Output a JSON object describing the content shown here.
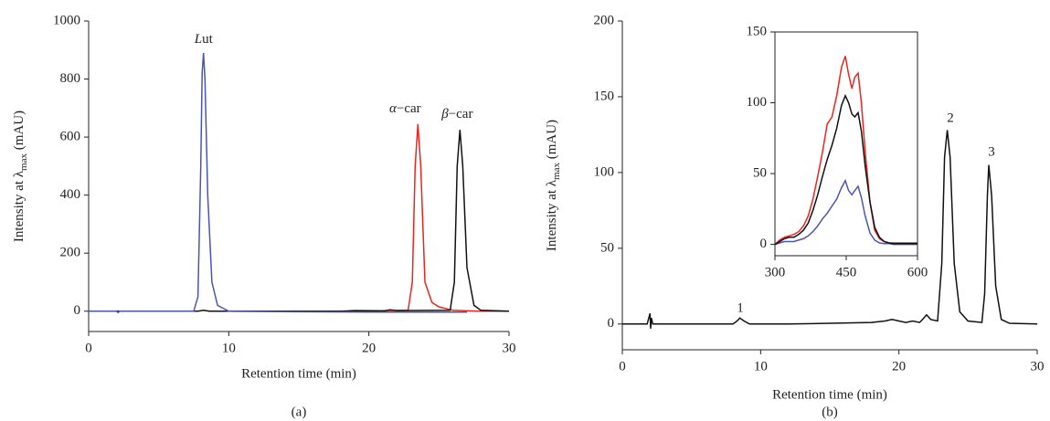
{
  "chart_data": [
    {
      "type": "line",
      "caption": "(a)",
      "xlabel": "Retention time (min)",
      "ylabel": [
        "Intensity at λ",
        "max",
        " (mAU)"
      ],
      "xlim": [
        0,
        30
      ],
      "ylim": [
        -70,
        1000
      ],
      "xticks": [
        0,
        10,
        20,
        30
      ],
      "yticks": [
        0,
        200,
        400,
        600,
        800,
        1000
      ],
      "series": [
        {
          "name": "α−car",
          "color": "#e8251f",
          "x": [
            18,
            19,
            21,
            22.8,
            23.1,
            23.3,
            23.5,
            23.7,
            24,
            24.5,
            25,
            26,
            28,
            30
          ],
          "values": [
            0,
            3,
            2,
            3,
            100,
            500,
            645,
            500,
            100,
            30,
            15,
            3,
            0,
            0
          ]
        },
        {
          "name": "β−car",
          "color": "#111111",
          "x": [
            0,
            7.8,
            8.2,
            8.6,
            15,
            21,
            21.5,
            22,
            25.8,
            26.1,
            26.3,
            26.5,
            26.7,
            27,
            27.5,
            28,
            30
          ],
          "values": [
            0,
            0,
            3,
            0,
            0,
            0,
            5,
            2,
            3,
            100,
            500,
            625,
            500,
            150,
            20,
            3,
            0
          ]
        },
        {
          "name": "Lut",
          "color": "#4a55b0",
          "x": [
            0,
            2,
            2.1,
            2.2,
            7.5,
            7.8,
            8,
            8.1,
            8.2,
            8.3,
            8.5,
            8.8,
            9.2,
            10,
            15,
            20,
            25,
            27
          ],
          "values": [
            0,
            0,
            -5,
            0,
            0,
            50,
            500,
            820,
            890,
            800,
            400,
            100,
            20,
            0,
            -2,
            -3,
            -3,
            -3
          ]
        }
      ]
    },
    {
      "type": "line",
      "caption": "(b)",
      "xlabel": "Retention time (min)",
      "ylabel": [
        "Intensity at λ",
        "max",
        " (mAU)"
      ],
      "xlim": [
        0,
        30
      ],
      "ylim": [
        -17,
        200
      ],
      "xticks": [
        0,
        10,
        20,
        30
      ],
      "yticks": [
        0,
        50,
        100,
        150,
        200
      ],
      "series": [
        {
          "color": "#111111",
          "x": [
            0,
            1.8,
            2,
            2.05,
            2.1,
            2.2,
            2.4,
            8,
            8.3,
            8.5,
            8.8,
            9.2,
            12,
            15,
            18,
            19,
            19.5,
            20,
            20.5,
            21,
            21.5,
            21.8,
            22,
            22.3,
            22.8,
            23.1,
            23.3,
            23.5,
            23.7,
            24,
            24.4,
            25,
            26,
            26.2,
            26.4,
            26.5,
            26.7,
            27,
            27.4,
            28,
            30
          ],
          "values": [
            0,
            0,
            7,
            -3,
            4,
            0,
            0,
            0,
            2,
            4,
            2,
            0,
            0,
            0.5,
            1,
            2,
            3,
            2,
            1,
            2,
            1,
            4,
            6,
            3,
            2,
            40,
            110,
            128,
            110,
            40,
            8,
            2,
            1,
            20,
            85,
            105,
            85,
            25,
            3,
            0.5,
            0
          ]
        }
      ],
      "annotations": [
        {
          "text": "1",
          "color": "#4a55b0"
        },
        {
          "text": "2",
          "color": "#e8251f"
        },
        {
          "text": "3",
          "color": "#111111"
        }
      ]
    },
    {
      "type": "line",
      "box": true,
      "xlim": [
        300,
        600
      ],
      "ylim": [
        -8,
        150
      ],
      "xticks": [
        300,
        450,
        600
      ],
      "yticks": [
        0,
        50,
        100,
        150
      ],
      "series": [
        {
          "color": "#4a55b0",
          "x": [
            300,
            310,
            320,
            330,
            340,
            350,
            360,
            370,
            380,
            390,
            400,
            410,
            420,
            430,
            440,
            448,
            455,
            462,
            468,
            475,
            482,
            490,
            500,
            510,
            520,
            530,
            540,
            550,
            600
          ],
          "values": [
            0,
            1,
            2,
            2,
            2,
            3,
            4,
            6,
            9,
            13,
            18,
            22,
            27,
            32,
            40,
            45,
            38,
            35,
            38,
            41,
            33,
            20,
            8,
            3,
            1,
            0.5,
            0.5,
            0,
            0
          ]
        },
        {
          "color": "#e8251f",
          "x": [
            300,
            310,
            320,
            330,
            340,
            350,
            360,
            370,
            380,
            390,
            400,
            410,
            420,
            430,
            440,
            448,
            455,
            462,
            468,
            475,
            482,
            490,
            500,
            510,
            520,
            530,
            540,
            550,
            600
          ],
          "values": [
            0,
            3,
            5,
            6,
            7,
            9,
            13,
            20,
            32,
            48,
            65,
            85,
            90,
            105,
            125,
            133,
            120,
            110,
            118,
            121,
            100,
            65,
            30,
            10,
            4,
            2,
            1,
            1,
            1
          ]
        },
        {
          "color": "#111111",
          "x": [
            300,
            310,
            320,
            330,
            340,
            350,
            360,
            370,
            380,
            390,
            400,
            410,
            420,
            430,
            440,
            448,
            455,
            462,
            468,
            475,
            482,
            490,
            500,
            510,
            520,
            530,
            540,
            550,
            600
          ],
          "values": [
            0,
            2,
            4,
            5,
            5,
            7,
            10,
            15,
            24,
            35,
            48,
            60,
            70,
            82,
            98,
            105,
            100,
            92,
            90,
            93,
            80,
            55,
            30,
            12,
            5,
            2,
            1,
            0.5,
            0.5
          ]
        }
      ]
    }
  ]
}
